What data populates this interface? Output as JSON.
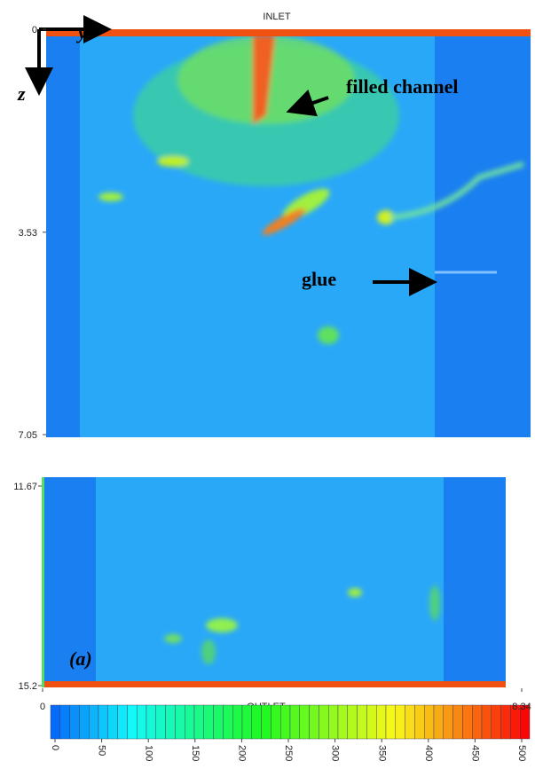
{
  "header": {
    "inlet": "INLET"
  },
  "axes": {
    "y_label": "y",
    "z_label": "z",
    "z_ticks_top": [
      0,
      3.53,
      7.05
    ],
    "z_ticks_bottom": [
      11.67,
      15.2
    ],
    "y_ticks": [
      0,
      8.34
    ]
  },
  "annotations": {
    "filled_channel": "filled channel",
    "glue": "glue"
  },
  "footer": {
    "outlet": "OUTLET"
  },
  "panel_label": "(a)",
  "colorbar": {
    "ticks": [
      0,
      50,
      100,
      150,
      200,
      250,
      300,
      350,
      400,
      450,
      500
    ]
  }
}
